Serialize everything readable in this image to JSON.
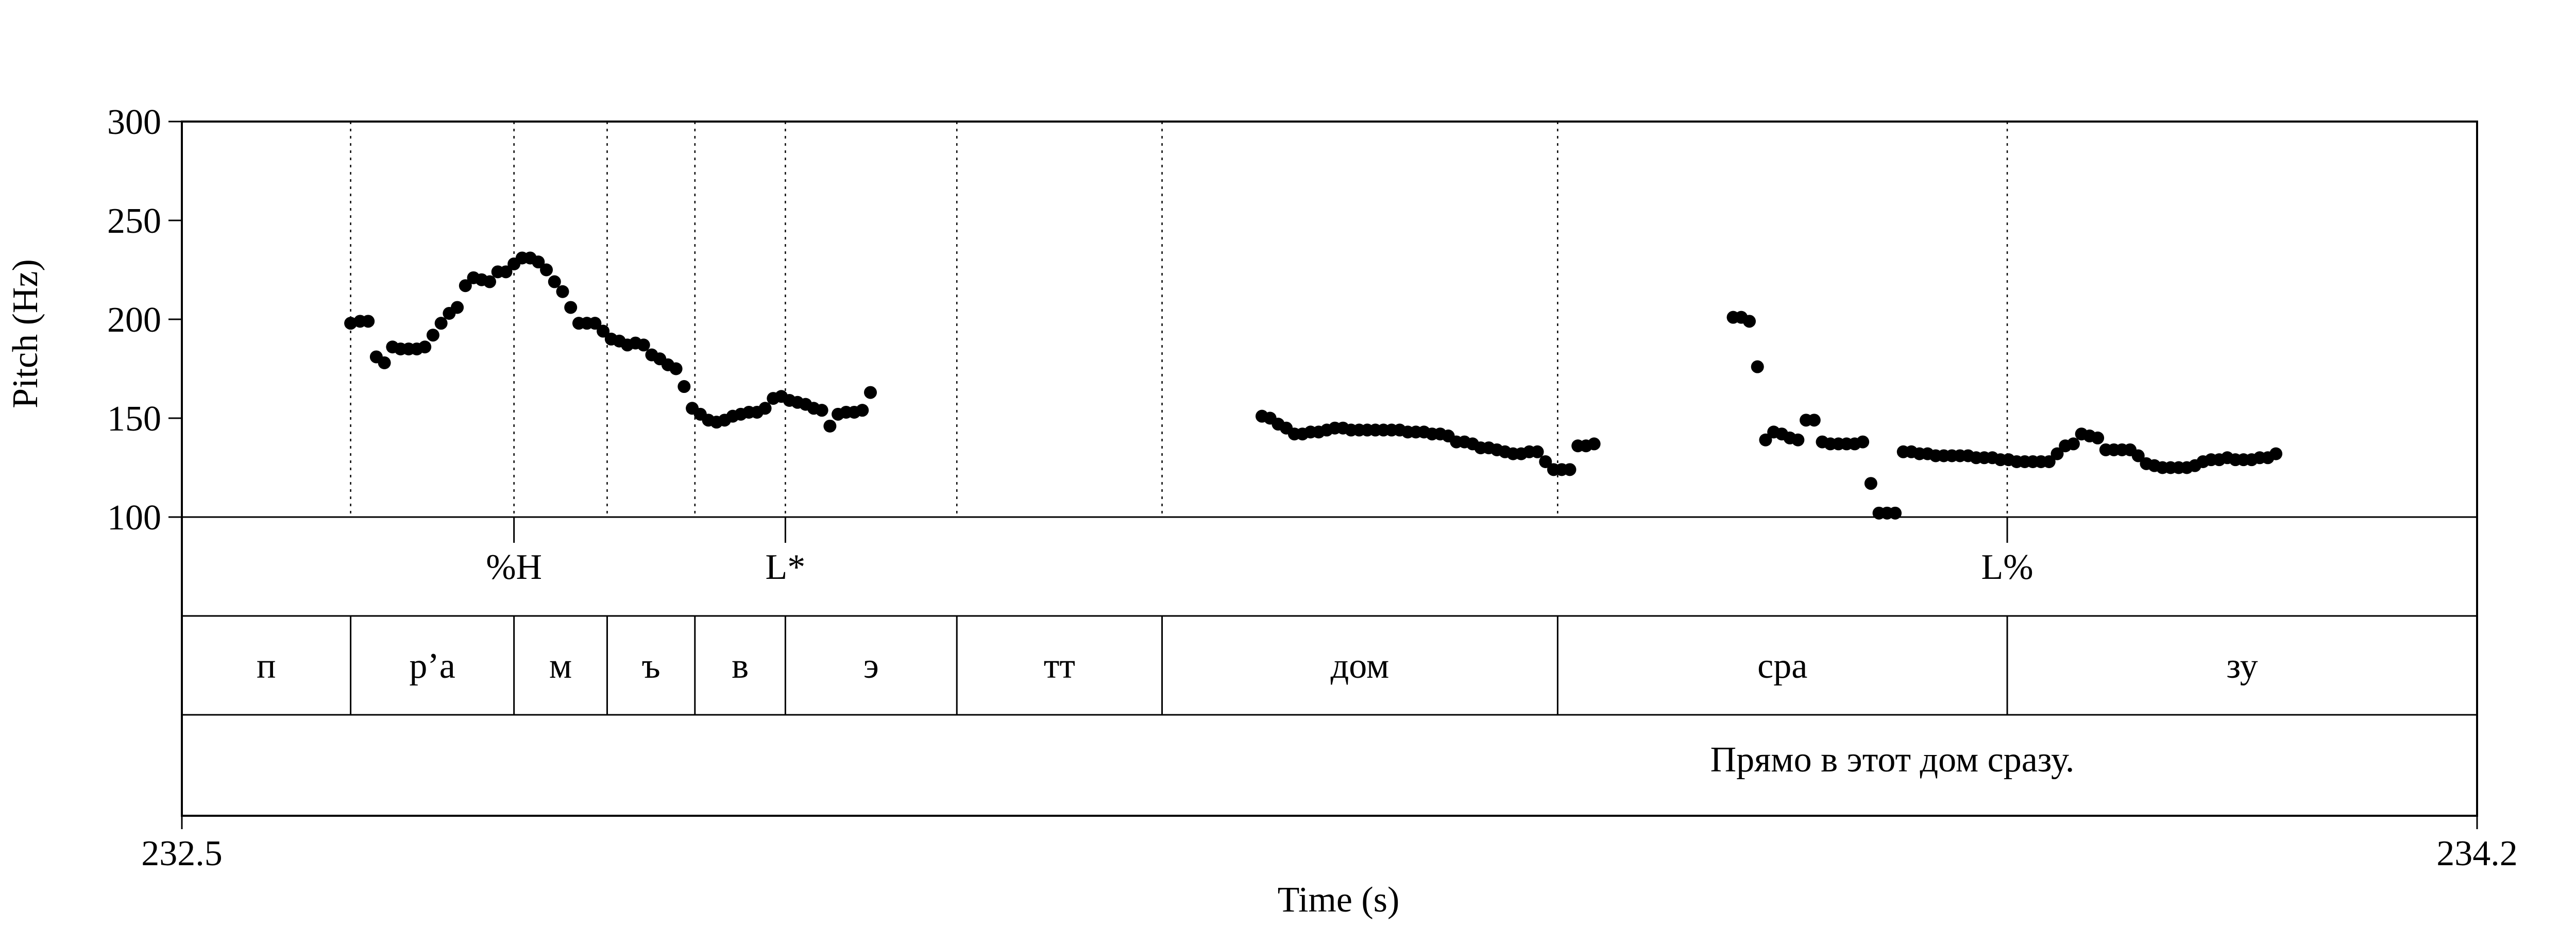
{
  "chart_data": {
    "type": "scatter",
    "xlabel": "Time (s)",
    "ylabel": "Pitch (Hz)",
    "xlim": [
      232.5,
      234.2
    ],
    "ylim": [
      100,
      300
    ],
    "x_tick_labels": [
      "232.5",
      "234.2"
    ],
    "y_ticks": [
      100,
      150,
      200,
      250,
      300
    ],
    "y_tick_labels": [
      "100",
      "150",
      "200",
      "250",
      "300"
    ],
    "grid": false,
    "segment_boundaries": [
      232.625,
      232.746,
      232.815,
      232.88,
      232.947,
      233.074,
      233.226,
      233.519,
      233.852
    ],
    "tones": [
      {
        "label": "%H",
        "time": 232.746
      },
      {
        "label": "L*",
        "time": 232.947
      },
      {
        "label": "L%",
        "time": 233.852
      }
    ],
    "segments": [
      {
        "label": "п",
        "start": 232.5,
        "end": 232.625
      },
      {
        "label": "р’а",
        "start": 232.625,
        "end": 232.746
      },
      {
        "label": "м",
        "start": 232.746,
        "end": 232.815
      },
      {
        "label": "ъ",
        "start": 232.815,
        "end": 232.88
      },
      {
        "label": "в",
        "start": 232.88,
        "end": 232.947
      },
      {
        "label": "э",
        "start": 232.947,
        "end": 233.074
      },
      {
        "label": "тт",
        "start": 233.074,
        "end": 233.226
      },
      {
        "label": "дом",
        "start": 233.226,
        "end": 233.519
      },
      {
        "label": "сра",
        "start": 233.519,
        "end": 233.852
      },
      {
        "label": "зу",
        "start": 233.852,
        "end": 234.2
      }
    ],
    "utterance": "Прямо в этот дом сразу.",
    "series": [
      {
        "points": [
          [
            232.625,
            198
          ],
          [
            232.632,
            199
          ],
          [
            232.638,
            199
          ],
          [
            232.644,
            181
          ],
          [
            232.65,
            178
          ],
          [
            232.656,
            186
          ],
          [
            232.662,
            185
          ],
          [
            232.668,
            185
          ],
          [
            232.674,
            185
          ],
          [
            232.68,
            186
          ],
          [
            232.686,
            192
          ],
          [
            232.692,
            198
          ],
          [
            232.698,
            203
          ],
          [
            232.704,
            206
          ],
          [
            232.71,
            217
          ],
          [
            232.716,
            221
          ],
          [
            232.722,
            220
          ],
          [
            232.728,
            219
          ],
          [
            232.734,
            224
          ],
          [
            232.74,
            224
          ],
          [
            232.746,
            228
          ],
          [
            232.752,
            231
          ],
          [
            232.758,
            231
          ],
          [
            232.764,
            229
          ],
          [
            232.77,
            225
          ],
          [
            232.776,
            219
          ],
          [
            232.782,
            214
          ],
          [
            232.788,
            206
          ],
          [
            232.794,
            198
          ],
          [
            232.8,
            198
          ],
          [
            232.806,
            198
          ],
          [
            232.812,
            194
          ],
          [
            232.818,
            190
          ],
          [
            232.824,
            189
          ],
          [
            232.83,
            187
          ],
          [
            232.836,
            188
          ],
          [
            232.842,
            187
          ],
          [
            232.848,
            182
          ],
          [
            232.854,
            180
          ],
          [
            232.86,
            177
          ],
          [
            232.866,
            175
          ],
          [
            232.872,
            166
          ],
          [
            232.878,
            155
          ],
          [
            232.884,
            152
          ],
          [
            232.89,
            149
          ],
          [
            232.896,
            148
          ],
          [
            232.902,
            149
          ],
          [
            232.908,
            151
          ],
          [
            232.914,
            152
          ],
          [
            232.92,
            153
          ],
          [
            232.926,
            153
          ],
          [
            232.932,
            155
          ],
          [
            232.938,
            160
          ],
          [
            232.944,
            161
          ],
          [
            232.95,
            159
          ],
          [
            232.956,
            158
          ],
          [
            232.962,
            157
          ],
          [
            232.968,
            155
          ],
          [
            232.974,
            154
          ],
          [
            232.98,
            146
          ],
          [
            232.986,
            152
          ],
          [
            232.992,
            153
          ],
          [
            232.998,
            153
          ],
          [
            233.004,
            154
          ],
          [
            233.01,
            163
          ],
          [
            233.3,
            151
          ],
          [
            233.306,
            150
          ],
          [
            233.312,
            147
          ],
          [
            233.318,
            145
          ],
          [
            233.324,
            142
          ],
          [
            233.33,
            142
          ],
          [
            233.336,
            143
          ],
          [
            233.342,
            143
          ],
          [
            233.348,
            144
          ],
          [
            233.354,
            145
          ],
          [
            233.36,
            145
          ],
          [
            233.366,
            144
          ],
          [
            233.372,
            144
          ],
          [
            233.378,
            144
          ],
          [
            233.384,
            144
          ],
          [
            233.39,
            144
          ],
          [
            233.396,
            144
          ],
          [
            233.402,
            144
          ],
          [
            233.408,
            143
          ],
          [
            233.414,
            143
          ],
          [
            233.42,
            143
          ],
          [
            233.426,
            142
          ],
          [
            233.432,
            142
          ],
          [
            233.438,
            141
          ],
          [
            233.444,
            138
          ],
          [
            233.45,
            138
          ],
          [
            233.456,
            137
          ],
          [
            233.462,
            135
          ],
          [
            233.468,
            135
          ],
          [
            233.474,
            134
          ],
          [
            233.48,
            133
          ],
          [
            233.486,
            132
          ],
          [
            233.492,
            132
          ],
          [
            233.498,
            133
          ],
          [
            233.504,
            133
          ],
          [
            233.51,
            128
          ],
          [
            233.516,
            124
          ],
          [
            233.522,
            124
          ],
          [
            233.528,
            124
          ],
          [
            233.534,
            136
          ],
          [
            233.54,
            136
          ],
          [
            233.546,
            137
          ],
          [
            233.649,
            201
          ],
          [
            233.655,
            201
          ],
          [
            233.661,
            199
          ],
          [
            233.667,
            176
          ],
          [
            233.673,
            139
          ],
          [
            233.679,
            143
          ],
          [
            233.685,
            142
          ],
          [
            233.691,
            140
          ],
          [
            233.697,
            139
          ],
          [
            233.703,
            149
          ],
          [
            233.709,
            149
          ],
          [
            233.715,
            138
          ],
          [
            233.721,
            137
          ],
          [
            233.727,
            137
          ],
          [
            233.733,
            137
          ],
          [
            233.739,
            137
          ],
          [
            233.745,
            138
          ],
          [
            233.751,
            117
          ],
          [
            233.757,
            102
          ],
          [
            233.763,
            102
          ],
          [
            233.769,
            102
          ],
          [
            233.775,
            133
          ],
          [
            233.781,
            133
          ],
          [
            233.787,
            132
          ],
          [
            233.793,
            132
          ],
          [
            233.799,
            131
          ],
          [
            233.805,
            131
          ],
          [
            233.811,
            131
          ],
          [
            233.817,
            131
          ],
          [
            233.823,
            131
          ],
          [
            233.829,
            130
          ],
          [
            233.835,
            130
          ],
          [
            233.841,
            130
          ],
          [
            233.847,
            129
          ],
          [
            233.853,
            129
          ],
          [
            233.859,
            128
          ],
          [
            233.865,
            128
          ],
          [
            233.871,
            128
          ],
          [
            233.877,
            128
          ],
          [
            233.883,
            128
          ],
          [
            233.889,
            132
          ],
          [
            233.895,
            136
          ],
          [
            233.901,
            137
          ],
          [
            233.907,
            142
          ],
          [
            233.913,
            141
          ],
          [
            233.919,
            140
          ],
          [
            233.925,
            134
          ],
          [
            233.931,
            134
          ],
          [
            233.937,
            134
          ],
          [
            233.943,
            134
          ],
          [
            233.949,
            131
          ],
          [
            233.955,
            127
          ],
          [
            233.961,
            126
          ],
          [
            233.967,
            125
          ],
          [
            233.973,
            125
          ],
          [
            233.979,
            125
          ],
          [
            233.985,
            125
          ],
          [
            233.991,
            126
          ],
          [
            233.997,
            128
          ],
          [
            234.003,
            129
          ],
          [
            234.009,
            129
          ],
          [
            234.015,
            130
          ],
          [
            234.021,
            129
          ],
          [
            234.027,
            129
          ],
          [
            234.033,
            129
          ],
          [
            234.039,
            130
          ],
          [
            234.045,
            130
          ],
          [
            234.051,
            132
          ]
        ]
      }
    ]
  }
}
